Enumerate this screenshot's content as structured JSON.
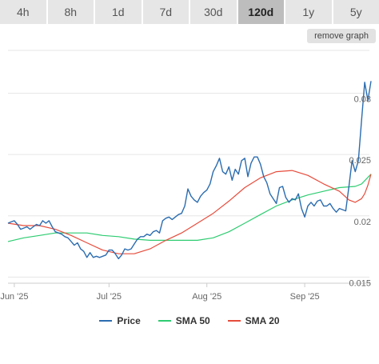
{
  "range_tabs": [
    {
      "label": "4h",
      "active": false
    },
    {
      "label": "8h",
      "active": false
    },
    {
      "label": "1d",
      "active": false
    },
    {
      "label": "7d",
      "active": false
    },
    {
      "label": "30d",
      "active": false
    },
    {
      "label": "120d",
      "active": true
    },
    {
      "label": "1y",
      "active": false
    },
    {
      "label": "5y",
      "active": false
    }
  ],
  "remove_graph_label": "remove graph",
  "chart_data": {
    "type": "line",
    "x_ticks": [
      {
        "label": "Jun '25",
        "day": 2
      },
      {
        "label": "Jul '25",
        "day": 32
      },
      {
        "label": "Aug '25",
        "day": 63
      },
      {
        "label": "Sep '25",
        "day": 94
      }
    ],
    "x_range": [
      0,
      115
    ],
    "y_ticks": [
      0.015,
      0.02,
      0.025,
      0.03
    ],
    "ylim": [
      0.0145,
      0.0335
    ],
    "grid": true,
    "legend_position": "bottom",
    "series": [
      {
        "name": "Price",
        "color": "#2b6cb0",
        "x": [
          0,
          1,
          2,
          3,
          4,
          5,
          6,
          7,
          8,
          9,
          10,
          11,
          12,
          13,
          14,
          15,
          16,
          17,
          18,
          19,
          20,
          21,
          22,
          23,
          24,
          25,
          26,
          27,
          28,
          29,
          30,
          31,
          32,
          33,
          34,
          35,
          36,
          37,
          38,
          39,
          40,
          41,
          42,
          43,
          44,
          45,
          46,
          47,
          48,
          49,
          50,
          51,
          52,
          53,
          54,
          55,
          56,
          57,
          58,
          59,
          60,
          61,
          62,
          63,
          64,
          65,
          66,
          67,
          68,
          69,
          70,
          71,
          72,
          73,
          74,
          75,
          76,
          77,
          78,
          79,
          80,
          81,
          82,
          83,
          84,
          85,
          86,
          87,
          88,
          89,
          90,
          91,
          92,
          93,
          94,
          95,
          96,
          97,
          98,
          99,
          100,
          101,
          102,
          103,
          104,
          105,
          106,
          107,
          108,
          109,
          110,
          111,
          112,
          113,
          114,
          115
        ],
        "y": [
          0.0194,
          0.0195,
          0.0196,
          0.0193,
          0.0189,
          0.019,
          0.0191,
          0.0189,
          0.0191,
          0.0193,
          0.0192,
          0.0196,
          0.0194,
          0.0196,
          0.0191,
          0.0187,
          0.0186,
          0.0185,
          0.0183,
          0.0182,
          0.0179,
          0.0176,
          0.0178,
          0.0173,
          0.0171,
          0.0166,
          0.017,
          0.0166,
          0.0167,
          0.0166,
          0.0167,
          0.0168,
          0.0172,
          0.0172,
          0.0169,
          0.0165,
          0.0168,
          0.0173,
          0.0172,
          0.0173,
          0.0177,
          0.0181,
          0.0183,
          0.0183,
          0.0185,
          0.0184,
          0.0187,
          0.0188,
          0.0186,
          0.0196,
          0.0198,
          0.0199,
          0.0197,
          0.0199,
          0.0201,
          0.0202,
          0.0208,
          0.0222,
          0.0216,
          0.0213,
          0.0211,
          0.0216,
          0.0219,
          0.0221,
          0.0226,
          0.0236,
          0.0241,
          0.0247,
          0.0236,
          0.0234,
          0.024,
          0.0229,
          0.0238,
          0.0234,
          0.0245,
          0.0247,
          0.0232,
          0.0243,
          0.0248,
          0.0248,
          0.0242,
          0.0232,
          0.0227,
          0.0218,
          0.0214,
          0.021,
          0.0223,
          0.0224,
          0.0215,
          0.0211,
          0.0214,
          0.0213,
          0.0218,
          0.0206,
          0.0199,
          0.0208,
          0.0211,
          0.0208,
          0.0212,
          0.0213,
          0.0208,
          0.0208,
          0.021,
          0.0206,
          0.0203,
          0.0206,
          0.0205,
          0.0204,
          0.0224,
          0.0245,
          0.0236,
          0.0245,
          0.0278,
          0.0309,
          0.0294,
          0.031
        ]
      },
      {
        "name": "SMA 50",
        "color": "#2ecc71",
        "x": [
          0,
          5,
          10,
          15,
          20,
          25,
          30,
          35,
          40,
          45,
          50,
          55,
          60,
          65,
          70,
          75,
          80,
          85,
          90,
          95,
          100,
          105,
          110,
          112,
          115
        ],
        "y": [
          0.0179,
          0.0182,
          0.0184,
          0.0186,
          0.0186,
          0.0186,
          0.0184,
          0.0183,
          0.0181,
          0.018,
          0.018,
          0.018,
          0.018,
          0.0182,
          0.0187,
          0.0194,
          0.0201,
          0.0208,
          0.0213,
          0.0217,
          0.022,
          0.0223,
          0.0224,
          0.0226,
          0.0234
        ]
      },
      {
        "name": "SMA 20",
        "color": "#e74c3c",
        "x": [
          0,
          5,
          10,
          15,
          20,
          25,
          30,
          35,
          40,
          45,
          50,
          55,
          60,
          65,
          70,
          75,
          80,
          85,
          90,
          95,
          100,
          105,
          108,
          110,
          112,
          113,
          114,
          115
        ],
        "y": [
          0.0194,
          0.0192,
          0.0192,
          0.0189,
          0.0184,
          0.0178,
          0.0172,
          0.0169,
          0.0169,
          0.0173,
          0.018,
          0.0186,
          0.0194,
          0.0202,
          0.0212,
          0.0223,
          0.0231,
          0.0236,
          0.0237,
          0.0233,
          0.0226,
          0.022,
          0.0213,
          0.0211,
          0.0214,
          0.0218,
          0.0225,
          0.0234
        ]
      }
    ]
  }
}
